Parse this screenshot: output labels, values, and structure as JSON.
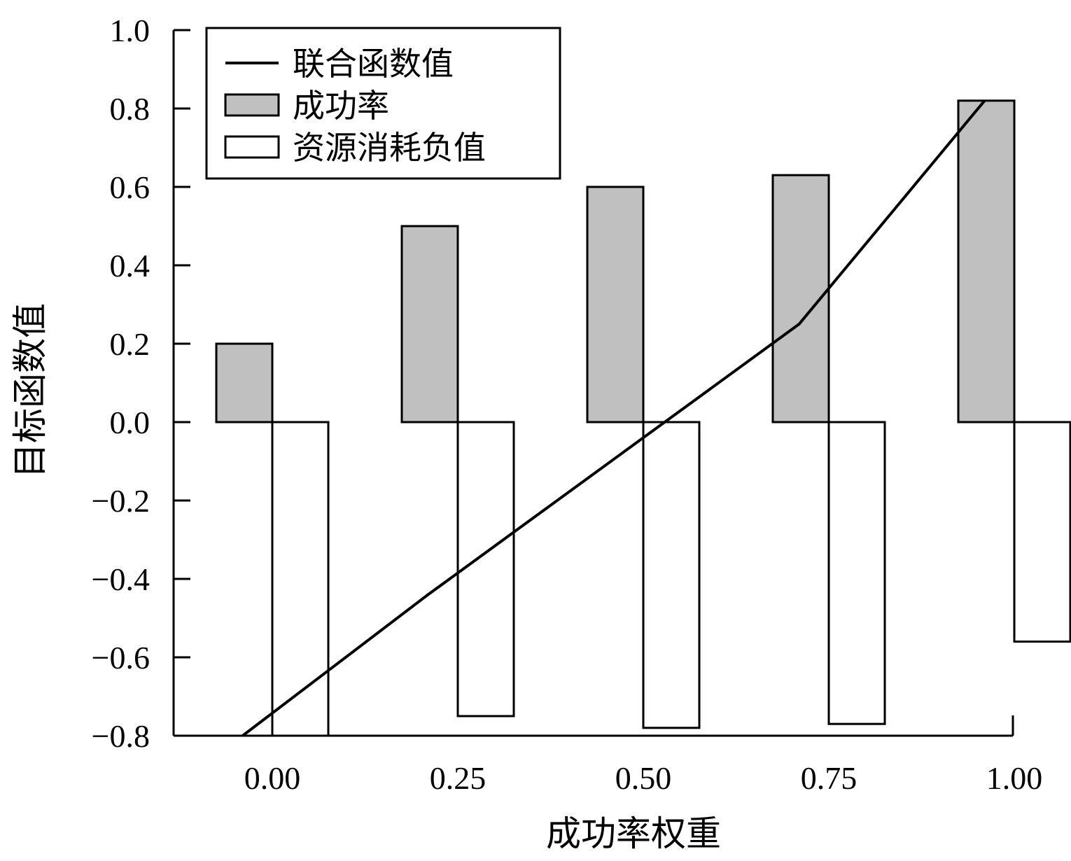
{
  "chart_data": {
    "type": "bar",
    "xlabel": "成功率权重",
    "ylabel": "目标函数值",
    "categories": [
      "0.00",
      "0.25",
      "0.50",
      "0.75",
      "1.00"
    ],
    "ylim": [
      -0.8,
      1.0
    ],
    "yticks": [
      "1.0",
      "0.8",
      "0.6",
      "0.4",
      "0.2",
      "0.0",
      "−0.2",
      "−0.4",
      "−0.6",
      "−0.8"
    ],
    "ytick_values": [
      1.0,
      0.8,
      0.6,
      0.4,
      0.2,
      0.0,
      -0.2,
      -0.4,
      -0.6,
      -0.8
    ],
    "series": [
      {
        "name": "成功率",
        "kind": "bar",
        "color": "#c0c0c0",
        "values": [
          0.2,
          0.5,
          0.6,
          0.63,
          0.82
        ]
      },
      {
        "name": "资源消耗负值",
        "kind": "bar",
        "color": "#ffffff",
        "values": [
          -0.8,
          -0.75,
          -0.78,
          -0.77,
          -0.56
        ]
      },
      {
        "name": "联合函数值",
        "kind": "line",
        "color": "#000000",
        "x": [
          -0.04,
          0.21,
          0.71,
          0.96
        ],
        "values": [
          -0.8,
          -0.44,
          0.25,
          0.82
        ]
      }
    ],
    "legend": {
      "position": "top-left",
      "items": [
        "联合函数值",
        "成功率",
        "资源消耗负值"
      ]
    },
    "grid": false
  }
}
